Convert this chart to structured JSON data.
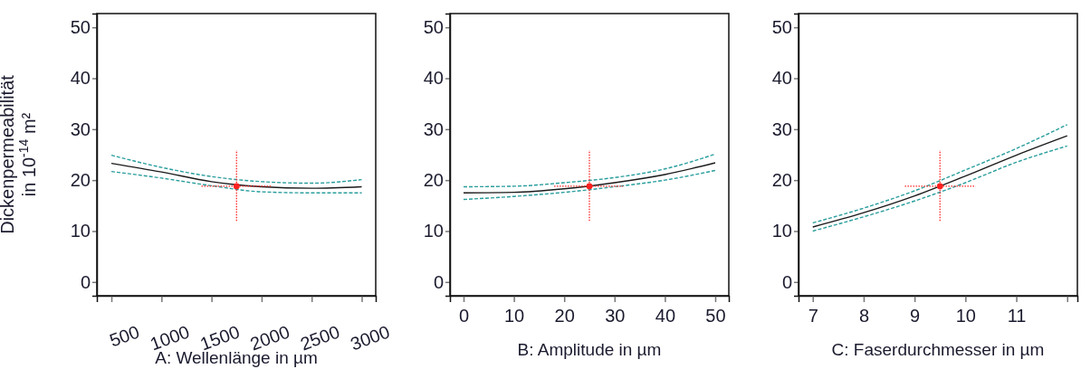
{
  "chart_data": [
    {
      "type": "line",
      "xlabel": "A: Wellenlänge in µm",
      "ylabel": "Dickenpermeabilität in 10$^{-14}$ m²",
      "x": [
        500,
        1000,
        1500,
        2000,
        2500,
        3000
      ],
      "xlim": [
        355,
        3140
      ],
      "xticks": [
        500,
        1000,
        1500,
        2000,
        2500,
        3000
      ],
      "ylim": [
        -2.7,
        52.7
      ],
      "yticks": [
        0,
        10,
        20,
        30,
        40,
        50
      ],
      "grid": false,
      "series": [
        {
          "color": "#1a1a1a",
          "line_style": "solid",
          "values": [
            23.3,
            21.6,
            19.7,
            18.7,
            18.4,
            18.7
          ]
        },
        {
          "color": "#2a9d9d",
          "line_style": "dashed",
          "values": [
            24.9,
            22.5,
            20.7,
            19.7,
            19.4,
            20.1
          ]
        },
        {
          "color": "#2a9d9d",
          "line_style": "dashed",
          "values": [
            21.7,
            20.4,
            18.9,
            17.7,
            17.5,
            17.5
          ]
        },
        {
          "type": "scatter",
          "color": "#ff2020",
          "marker": "circle",
          "line_style": "dotted",
          "x": [
            1750
          ],
          "values": [
            18.8
          ],
          "errors": [
            [
              12.0,
              25.9
            ]
          ],
          "xerrors": [
            [
              1400,
              2100
            ]
          ]
        }
      ]
    },
    {
      "type": "line",
      "xlabel": "B: Amplitude in µm",
      "x": [
        0,
        10,
        20,
        30,
        40,
        50
      ],
      "xlim": [
        -2.7,
        52.7
      ],
      "xticks": [
        0,
        10,
        20,
        30,
        40,
        50
      ],
      "ylim": [
        -2.7,
        52.7
      ],
      "yticks": [
        0,
        10,
        20,
        30,
        40,
        50
      ],
      "grid": false,
      "series": [
        {
          "color": "#1a1a1a",
          "line_style": "solid",
          "values": [
            17.5,
            17.6,
            18.3,
            19.5,
            21.1,
            23.4
          ]
        },
        {
          "color": "#2a9d9d",
          "line_style": "dashed",
          "values": [
            18.7,
            18.8,
            19.5,
            20.5,
            22.2,
            25.1
          ]
        },
        {
          "color": "#2a9d9d",
          "line_style": "dashed",
          "values": [
            16.2,
            16.8,
            17.6,
            18.7,
            20.0,
            21.9
          ]
        },
        {
          "type": "scatter",
          "color": "#ff2020",
          "marker": "circle",
          "line_style": "dotted",
          "x": [
            25
          ],
          "values": [
            18.8
          ],
          "errors": [
            [
              12.0,
              25.9
            ]
          ],
          "xerrors": [
            [
              18,
              31.7
            ]
          ]
        }
      ]
    },
    {
      "type": "line",
      "xlabel": "C: Faserdurchmesser in µm",
      "x": [
        7,
        8,
        9,
        10,
        11,
        12
      ],
      "xlim": [
        6.72,
        12.2
      ],
      "xticks": [
        7,
        8,
        9,
        10,
        11,
        {
          "value": 12,
          "label": null
        }
      ],
      "ylim": [
        -2.7,
        52.7
      ],
      "yticks": [
        0,
        10,
        20,
        30,
        40,
        50
      ],
      "grid": false,
      "series": [
        {
          "color": "#1a1a1a",
          "line_style": "solid",
          "values": [
            10.8,
            13.6,
            16.9,
            20.8,
            24.9,
            28.7
          ]
        },
        {
          "color": "#2a9d9d",
          "line_style": "dashed",
          "values": [
            11.6,
            14.5,
            17.9,
            22.0,
            26.2,
            30.9
          ]
        },
        {
          "color": "#2a9d9d",
          "line_style": "dashed",
          "values": [
            10.0,
            12.8,
            15.9,
            19.5,
            23.5,
            26.7
          ]
        },
        {
          "type": "scatter",
          "color": "#ff2020",
          "marker": "circle",
          "line_style": "dotted",
          "x": [
            9.5
          ],
          "values": [
            18.8
          ],
          "errors": [
            [
              12.0,
              25.9
            ]
          ],
          "xerrors": [
            [
              8.81,
              10.18
            ]
          ]
        }
      ]
    }
  ]
}
